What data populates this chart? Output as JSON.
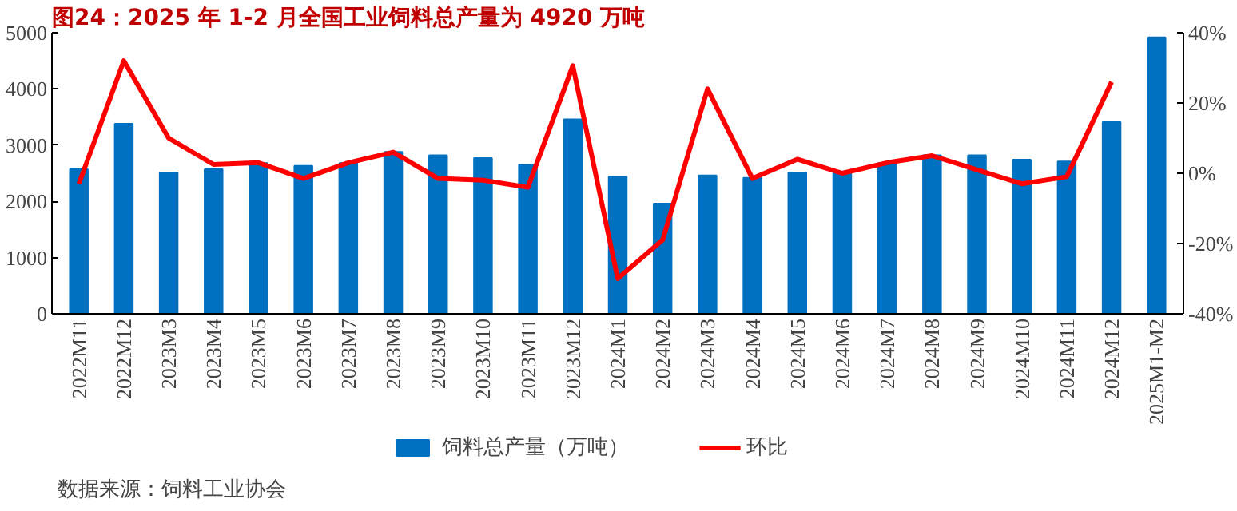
{
  "chart_data": {
    "type": "bar",
    "title": "图24：2025 年 1-2 月全国工业饲料总产量为 4920 万吨",
    "categories": [
      "2022M11",
      "2022M12",
      "2023M3",
      "2023M4",
      "2023M5",
      "2023M6",
      "2023M7",
      "2023M8",
      "2023M9",
      "2023M10",
      "2023M11",
      "2023M12",
      "2024M1",
      "2024M2",
      "2024M3",
      "2024M4",
      "2024M5",
      "2024M6",
      "2024M7",
      "2024M8",
      "2024M9",
      "2024M10",
      "2024M11",
      "2024M12",
      "2025M1-M2"
    ],
    "series": [
      {
        "name": "饲料总产量（万吨）",
        "color": "#0070c0",
        "values": [
          2570,
          3380,
          2510,
          2570,
          2680,
          2630,
          2680,
          2880,
          2820,
          2770,
          2650,
          3460,
          2440,
          1960,
          2460,
          2420,
          2510,
          2510,
          2680,
          2820,
          2820,
          2740,
          2710,
          3410,
          4920
        ]
      },
      {
        "name": "环比",
        "type": "line",
        "axis": "y2",
        "color": "#ff0000",
        "values": [
          -3,
          32,
          10,
          2.5,
          3,
          -1.5,
          3,
          6,
          -1.5,
          -2,
          -4,
          30.6,
          -30,
          -19,
          24,
          -1.5,
          4,
          0,
          3,
          5,
          1,
          -3,
          -1,
          26,
          null
        ]
      }
    ],
    "ylim": [
      0,
      5000
    ],
    "yticks": [
      0,
      1000,
      2000,
      3000,
      4000,
      5000
    ],
    "y2lim": [
      -40,
      40
    ],
    "y2ticks": [
      {
        "value": -40,
        "label": "-40%"
      },
      {
        "value": -20,
        "label": "-20%"
      },
      {
        "value": 0,
        "label": "0%"
      },
      {
        "value": 20,
        "label": "20%"
      },
      {
        "value": 40,
        "label": "40%"
      }
    ],
    "grid": false,
    "legend": "bottom",
    "annotations": [
      "数据来源：饲料工业协会"
    ]
  }
}
